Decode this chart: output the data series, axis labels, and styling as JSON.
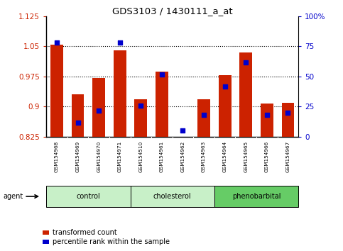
{
  "title": "GDS3103 / 1430111_a_at",
  "samples": [
    "GSM154968",
    "GSM154969",
    "GSM154970",
    "GSM154971",
    "GSM154510",
    "GSM154961",
    "GSM154962",
    "GSM154963",
    "GSM154964",
    "GSM154965",
    "GSM154966",
    "GSM154967"
  ],
  "red_bar_values": [
    1.055,
    0.93,
    0.972,
    1.04,
    0.918,
    0.988,
    0.825,
    0.918,
    0.978,
    1.035,
    0.908,
    0.91
  ],
  "blue_dot_values": [
    78,
    12,
    22,
    78,
    26,
    52,
    5,
    18,
    42,
    62,
    18,
    20
  ],
  "ylim_left": [
    0.825,
    1.125
  ],
  "ylim_right": [
    0,
    100
  ],
  "yticks_left": [
    0.825,
    0.9,
    0.975,
    1.05,
    1.125
  ],
  "yticks_right": [
    0,
    25,
    50,
    75,
    100
  ],
  "ytick_labels_left": [
    "0.825",
    "0.9",
    "0.975",
    "1.05",
    "1.125"
  ],
  "ytick_labels_right": [
    "0",
    "25",
    "50",
    "75",
    "100%"
  ],
  "hlines": [
    1.05,
    0.975,
    0.9
  ],
  "groups": [
    {
      "label": "control",
      "indices": [
        0,
        1,
        2,
        3
      ],
      "color": "#c8f0c8"
    },
    {
      "label": "cholesterol",
      "indices": [
        4,
        5,
        6,
        7
      ],
      "color": "#c8f0c8"
    },
    {
      "label": "phenobarbital",
      "indices": [
        8,
        9,
        10,
        11
      ],
      "color": "#66cc66"
    }
  ],
  "bar_color": "#cc2200",
  "dot_color": "#0000cc",
  "bar_bottom": 0.825,
  "bar_width": 0.6,
  "bg_color": "#ffffff",
  "plot_bg": "#ffffff",
  "tick_color_left": "#cc2200",
  "tick_color_right": "#0000cc",
  "agent_label": "agent",
  "legend_items": [
    "transformed count",
    "percentile rank within the sample"
  ],
  "xtick_bg": "#d0d0d0"
}
